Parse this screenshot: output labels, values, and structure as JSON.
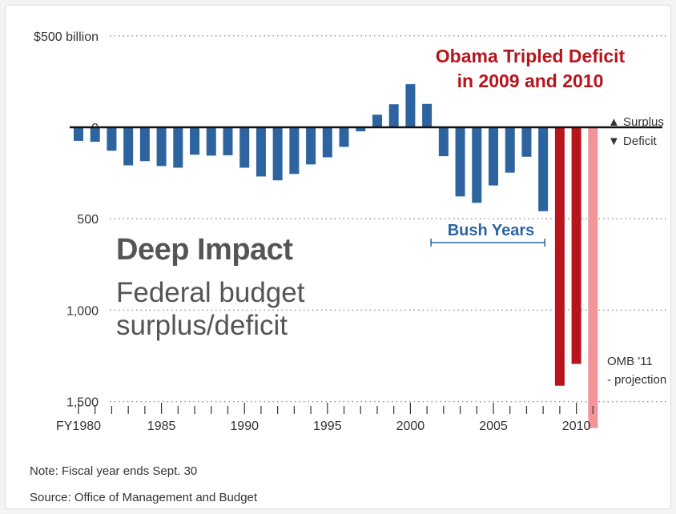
{
  "headline": {
    "line1": "Obama Tripled Deficit",
    "line2": "in 2009 and 2010"
  },
  "title": "Deep Impact",
  "subtitle": {
    "line1": "Federal budget",
    "line2": "surplus/deficit"
  },
  "annotations": {
    "bush_years": "Bush Years",
    "surplus": "▲ Surplus",
    "deficit": "▼ Deficit",
    "omb_line1": "OMB '11",
    "omb_line2": "- projection"
  },
  "note": "Note: Fiscal year ends Sept. 30",
  "source": "Source: Office of Management and Budget",
  "colors": {
    "bush_era_and_prior": "#2d64a0",
    "obama": "#b8141c",
    "projection": "#f29498",
    "headline": "#b8141c"
  },
  "chart_data": {
    "type": "bar",
    "title": "Deep Impact",
    "subtitle": "Federal budget surplus/deficit",
    "ylabel": "",
    "ylim": [
      -1600,
      500
    ],
    "y_direction": "negative values (deficit) plotted downward",
    "y_ticks": [
      {
        "value": 500,
        "label": "$500 billion"
      },
      {
        "value": 0,
        "label": "0"
      },
      {
        "value": -500,
        "label": "500"
      },
      {
        "value": -1000,
        "label": "1,000"
      },
      {
        "value": -1500,
        "label": "1,500"
      }
    ],
    "x_ticks": [
      {
        "year": 1980,
        "label": "FY1980"
      },
      {
        "year": 1985,
        "label": "1985"
      },
      {
        "year": 1990,
        "label": "1990"
      },
      {
        "year": 1995,
        "label": "1995"
      },
      {
        "year": 2000,
        "label": "2000"
      },
      {
        "year": 2005,
        "label": "2005"
      },
      {
        "year": 2010,
        "label": "2010"
      }
    ],
    "grid": "dotted horizontal gridlines",
    "categories": [
      1980,
      1981,
      1982,
      1983,
      1984,
      1985,
      1986,
      1987,
      1988,
      1989,
      1990,
      1991,
      1992,
      1993,
      1994,
      1995,
      1996,
      1997,
      1998,
      1999,
      2000,
      2001,
      2002,
      2003,
      2004,
      2005,
      2006,
      2007,
      2008,
      2009,
      2010,
      2011
    ],
    "values": [
      -74,
      -79,
      -128,
      -208,
      -185,
      -212,
      -221,
      -150,
      -155,
      -153,
      -221,
      -269,
      -290,
      -255,
      -203,
      -164,
      -107,
      -22,
      69,
      126,
      236,
      128,
      -158,
      -378,
      -413,
      -318,
      -248,
      -161,
      -459,
      -1413,
      -1294,
      -1645
    ],
    "series_groups": [
      {
        "group": "bush_era_and_prior",
        "from": 1980,
        "to": 2008
      },
      {
        "group": "obama",
        "from": 2009,
        "to": 2010
      },
      {
        "group": "projection",
        "from": 2011,
        "to": 2011
      }
    ]
  }
}
